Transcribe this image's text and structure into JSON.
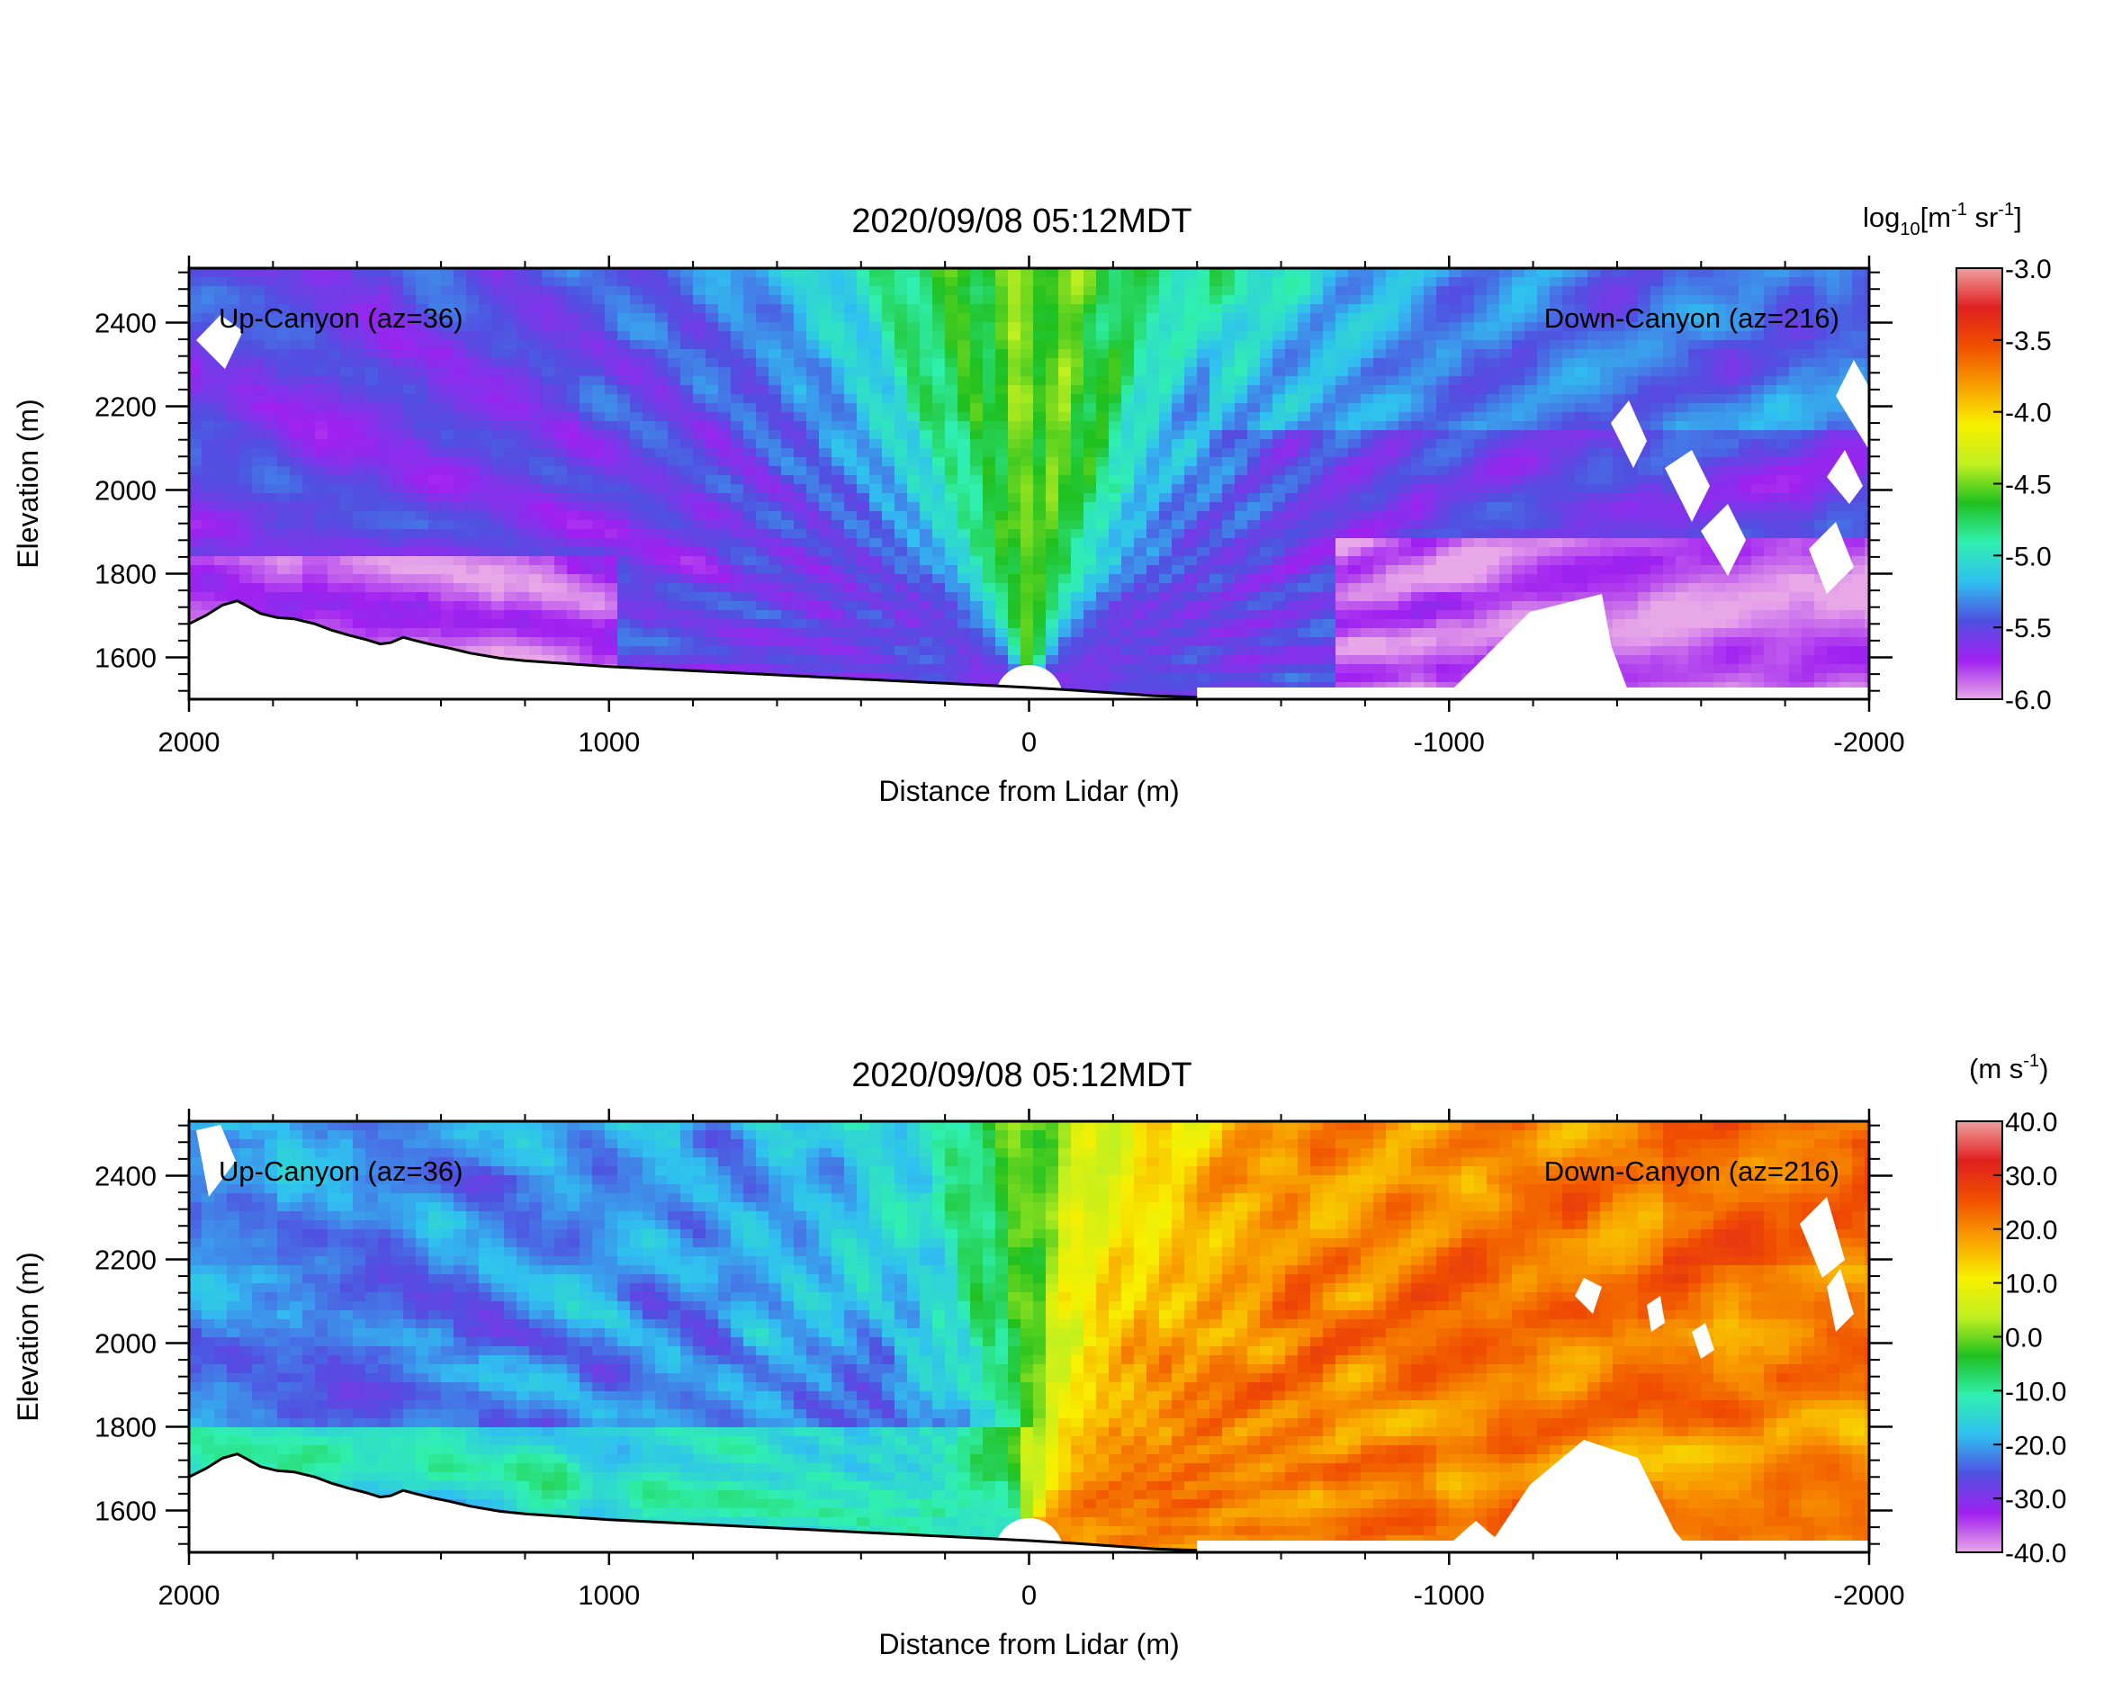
{
  "chart_data": [
    {
      "type": "heatmap",
      "title": "2020/09/08 05:12MDT",
      "xlabel": "Distance from Lidar (m)",
      "ylabel": "Elevation (m)",
      "xlim": [
        2000,
        -2000
      ],
      "ylim": [
        1500,
        2530
      ],
      "x_ticks": [
        "2000",
        "1000",
        "0",
        "-1000",
        "-2000"
      ],
      "x_tick_values": [
        2000,
        1000,
        0,
        -1000,
        -2000
      ],
      "y_ticks": [
        "1600",
        "1800",
        "2000",
        "2200",
        "2400"
      ],
      "y_tick_values": [
        1600,
        1800,
        2000,
        2200,
        2400
      ],
      "annotations": [
        "Up-Canyon (az=36)",
        "Down-Canyon (az=216)"
      ],
      "colorbar": {
        "label_main": "log",
        "label_sub": "10",
        "label_rest": "[m",
        "label_sup1": "-1",
        "label_mid": " sr",
        "label_sup2": "-1",
        "label_end": "]",
        "range": [
          -6.0,
          -3.0
        ],
        "ticks": [
          "-3.0",
          "-3.5",
          "-4.0",
          "-4.5",
          "-5.0",
          "-5.5",
          "-6.0"
        ],
        "tick_values": [
          -3.0,
          -3.5,
          -4.0,
          -4.5,
          -5.0,
          -5.5,
          -6.0
        ]
      },
      "field_description_values": {
        "left_near_ground": -5.6,
        "upper_left": -5.3,
        "center_column": -4.6,
        "right_upper": -5.4,
        "right_lower": -5.8
      }
    },
    {
      "type": "heatmap",
      "title": "2020/09/08 05:12MDT",
      "xlabel": "Distance from Lidar (m)",
      "ylabel": "Elevation (m)",
      "xlim": [
        2000,
        -2000
      ],
      "ylim": [
        1500,
        2530
      ],
      "x_ticks": [
        "2000",
        "1000",
        "0",
        "-1000",
        "-2000"
      ],
      "x_tick_values": [
        2000,
        1000,
        0,
        -1000,
        -2000
      ],
      "y_ticks": [
        "1600",
        "1800",
        "2000",
        "2200",
        "2400"
      ],
      "y_tick_values": [
        1600,
        1800,
        2000,
        2200,
        2400
      ],
      "annotations": [
        "Up-Canyon (az=36)",
        "Down-Canyon (az=216)"
      ],
      "colorbar": {
        "label_main": "(m s",
        "label_sup1": "-1",
        "label_end": ")",
        "range": [
          -40.0,
          40.0
        ],
        "ticks": [
          "40.0",
          "30.0",
          "20.0",
          "10.0",
          "0.0",
          "-10.0",
          "-20.0",
          "-30.0",
          "-40.0"
        ],
        "tick_values": [
          40,
          30,
          20,
          10,
          0,
          -10,
          -20,
          -30,
          -40
        ]
      },
      "field_description_values": {
        "left_side": -25,
        "center": 0,
        "right_side": 22
      }
    }
  ],
  "colors": {
    "colormap": [
      "#e8a8e8",
      "#a020f0",
      "#5050e0",
      "#30c0f0",
      "#30f0b0",
      "#20c020",
      "#c0f020",
      "#f8f000",
      "#f8a000",
      "#f05000",
      "#e02020",
      "#f0a0a0"
    ],
    "terrain_line": "#000000",
    "background": "#ffffff"
  }
}
